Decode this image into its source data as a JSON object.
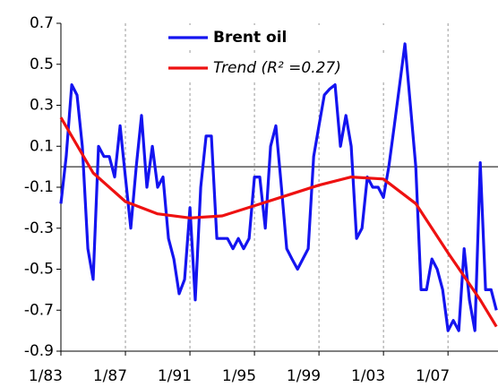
{
  "chart_data": {
    "type": "line",
    "xlim": [
      1983,
      2010.1
    ],
    "ylim": [
      -0.9,
      0.7
    ],
    "xticks": [
      {
        "value": 1983,
        "label": "1/83"
      },
      {
        "value": 1987,
        "label": "1/87"
      },
      {
        "value": 1991,
        "label": "1/91"
      },
      {
        "value": 1995,
        "label": "1/95"
      },
      {
        "value": 1999,
        "label": "1/99"
      },
      {
        "value": 2003,
        "label": "1/03"
      },
      {
        "value": 2007,
        "label": "1/07"
      }
    ],
    "yticks": [
      0.7,
      0.5,
      0.3,
      0.1,
      -0.1,
      -0.3,
      -0.5,
      -0.7,
      -0.9
    ],
    "grid": true,
    "series": [
      {
        "name": "Brent oil",
        "color": "#1414f0",
        "x": [
          1983,
          1983.33,
          1983.67,
          1984,
          1984.33,
          1984.67,
          1985,
          1985.33,
          1985.67,
          1986,
          1986.33,
          1986.67,
          1987,
          1987.33,
          1987.67,
          1988,
          1988.33,
          1988.67,
          1989,
          1989.33,
          1989.67,
          1990,
          1990.33,
          1990.67,
          1991,
          1991.33,
          1991.67,
          1992,
          1992.33,
          1992.67,
          1993,
          1993.33,
          1993.67,
          1994,
          1994.33,
          1994.67,
          1995,
          1995.33,
          1995.67,
          1996,
          1996.33,
          1996.67,
          1997,
          1997.33,
          1997.67,
          1998,
          1998.33,
          1998.67,
          1999,
          1999.33,
          1999.67,
          2000,
          2000.33,
          2000.67,
          2001,
          2001.33,
          2001.67,
          2002,
          2002.33,
          2002.67,
          2003,
          2003.33,
          2003.67,
          2004,
          2004.33,
          2004.67,
          2005,
          2005.33,
          2005.67,
          2006,
          2006.33,
          2006.67,
          2007,
          2007.33,
          2007.67,
          2008,
          2008.33,
          2008.67,
          2009,
          2009.33,
          2009.67,
          2010
        ],
        "values": [
          -0.18,
          0.05,
          0.4,
          0.35,
          0.1,
          -0.4,
          -0.55,
          0.1,
          0.05,
          0.05,
          -0.05,
          0.2,
          -0.05,
          -0.3,
          0.0,
          0.25,
          -0.1,
          0.1,
          -0.1,
          -0.05,
          -0.35,
          -0.45,
          -0.62,
          -0.55,
          -0.2,
          -0.65,
          -0.1,
          0.15,
          0.15,
          -0.35,
          -0.35,
          -0.35,
          -0.4,
          -0.35,
          -0.4,
          -0.35,
          -0.05,
          -0.05,
          -0.3,
          0.1,
          0.2,
          -0.1,
          -0.4,
          -0.45,
          -0.5,
          -0.45,
          -0.4,
          0.05,
          0.2,
          0.35,
          0.38,
          0.4,
          0.1,
          0.25,
          0.1,
          -0.35,
          -0.3,
          -0.05,
          -0.1,
          -0.1,
          -0.15,
          0.0,
          0.2,
          0.4,
          0.6,
          0.3,
          0.0,
          -0.6,
          -0.6,
          -0.45,
          -0.5,
          -0.6,
          -0.8,
          -0.75,
          -0.8,
          -0.4,
          -0.65,
          -0.8,
          0.02,
          -0.6,
          -0.6,
          -0.7
        ]
      },
      {
        "name": "Trend (R² =0.27)",
        "color": "#ee1111",
        "x": [
          1983,
          1985,
          1987,
          1989,
          1991,
          1993,
          1995,
          1997,
          1999,
          2001,
          2003,
          2005,
          2007,
          2009,
          2010
        ],
        "values": [
          0.24,
          -0.03,
          -0.17,
          -0.23,
          -0.25,
          -0.24,
          -0.19,
          -0.14,
          -0.09,
          -0.05,
          -0.06,
          -0.18,
          -0.42,
          -0.65,
          -0.78
        ]
      }
    ]
  }
}
